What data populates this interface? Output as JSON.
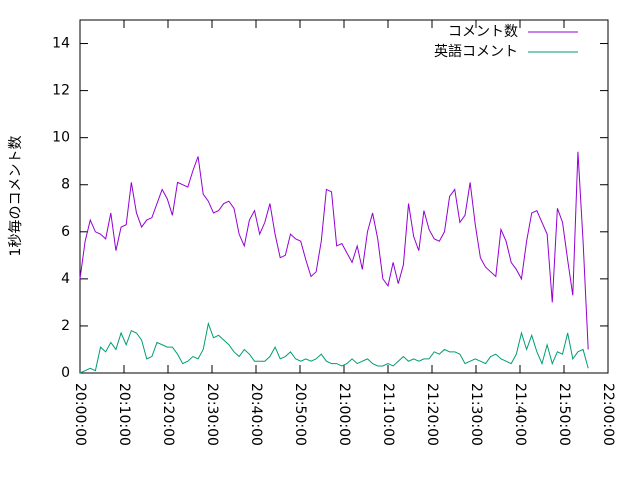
{
  "chart_data": {
    "type": "line",
    "y_label": "1秒毎のコメント数",
    "x": [
      "20:00:00",
      "20:01:10",
      "20:02:20",
      "20:03:30",
      "20:04:40",
      "20:05:50",
      "20:07:00",
      "20:08:10",
      "20:09:20",
      "20:10:30",
      "20:11:40",
      "20:12:50",
      "20:14:00",
      "20:15:10",
      "20:16:20",
      "20:17:30",
      "20:18:40",
      "20:19:50",
      "20:21:00",
      "20:22:10",
      "20:23:20",
      "20:24:30",
      "20:25:40",
      "20:26:50",
      "20:28:00",
      "20:29:10",
      "20:30:20",
      "20:31:30",
      "20:32:40",
      "20:33:50",
      "20:35:00",
      "20:36:10",
      "20:37:20",
      "20:38:30",
      "20:39:40",
      "20:40:50",
      "20:42:00",
      "20:43:10",
      "20:44:20",
      "20:45:30",
      "20:46:40",
      "20:47:50",
      "20:49:00",
      "20:50:10",
      "20:51:20",
      "20:52:30",
      "20:53:40",
      "20:54:50",
      "20:56:00",
      "20:57:10",
      "20:58:20",
      "20:59:30",
      "21:00:40",
      "21:01:50",
      "21:03:00",
      "21:04:10",
      "21:05:20",
      "21:06:30",
      "21:07:40",
      "21:08:50",
      "21:10:00",
      "21:11:10",
      "21:12:20",
      "21:13:30",
      "21:14:40",
      "21:15:50",
      "21:17:00",
      "21:18:10",
      "21:19:20",
      "21:20:30",
      "21:21:40",
      "21:22:50",
      "21:24:00",
      "21:25:10",
      "21:26:20",
      "21:27:30",
      "21:28:40",
      "21:29:50",
      "21:31:00",
      "21:32:10",
      "21:33:20",
      "21:34:30",
      "21:35:40",
      "21:36:50",
      "21:38:00",
      "21:39:10",
      "21:40:20",
      "21:41:30",
      "21:42:40",
      "21:43:50",
      "21:45:00",
      "21:46:10",
      "21:47:20",
      "21:48:30",
      "21:49:40",
      "21:50:50",
      "21:52:00",
      "21:53:10",
      "21:54:20",
      "21:55:30"
    ],
    "series": [
      {
        "name": "コメント数",
        "color": "#9400d3",
        "values": [
          4.0,
          5.6,
          6.5,
          6.0,
          5.9,
          5.7,
          6.8,
          5.2,
          6.2,
          6.3,
          8.1,
          6.8,
          6.2,
          6.5,
          6.6,
          7.2,
          7.8,
          7.4,
          6.7,
          8.1,
          8.0,
          7.9,
          8.6,
          9.2,
          7.6,
          7.3,
          6.8,
          6.9,
          7.2,
          7.3,
          7.0,
          5.9,
          5.4,
          6.5,
          6.9,
          5.9,
          6.4,
          7.2,
          5.9,
          4.9,
          5.0,
          5.9,
          5.7,
          5.6,
          4.8,
          4.1,
          4.3,
          5.6,
          7.8,
          7.7,
          5.4,
          5.5,
          5.1,
          4.7,
          5.4,
          4.4,
          6.0,
          6.8,
          5.7,
          4.0,
          3.7,
          4.7,
          3.8,
          4.6,
          7.2,
          5.8,
          5.2,
          6.9,
          6.1,
          5.7,
          5.6,
          6.0,
          7.5,
          7.8,
          6.4,
          6.7,
          8.1,
          6.3,
          4.9,
          4.5,
          4.3,
          4.1,
          6.1,
          5.6,
          4.7,
          4.4,
          4.0,
          5.6,
          6.8,
          6.9,
          6.4,
          5.9,
          3.0,
          7.0,
          6.4,
          4.8,
          3.3,
          9.4,
          5.6,
          1.0
        ]
      },
      {
        "name": "英語コメント",
        "color": "#009e73",
        "values": [
          0.0,
          0.1,
          0.2,
          0.1,
          1.1,
          0.9,
          1.3,
          1.0,
          1.7,
          1.2,
          1.8,
          1.7,
          1.4,
          0.6,
          0.7,
          1.3,
          1.2,
          1.1,
          1.1,
          0.8,
          0.4,
          0.5,
          0.7,
          0.6,
          1.0,
          2.1,
          1.5,
          1.6,
          1.4,
          1.2,
          0.9,
          0.7,
          1.0,
          0.8,
          0.5,
          0.5,
          0.5,
          0.7,
          1.1,
          0.6,
          0.7,
          0.9,
          0.6,
          0.5,
          0.6,
          0.5,
          0.6,
          0.8,
          0.5,
          0.4,
          0.4,
          0.3,
          0.4,
          0.6,
          0.4,
          0.5,
          0.6,
          0.4,
          0.3,
          0.3,
          0.4,
          0.3,
          0.5,
          0.7,
          0.5,
          0.6,
          0.5,
          0.6,
          0.6,
          0.9,
          0.8,
          1.0,
          0.9,
          0.9,
          0.8,
          0.4,
          0.5,
          0.6,
          0.5,
          0.4,
          0.7,
          0.8,
          0.6,
          0.5,
          0.4,
          0.8,
          1.7,
          1.0,
          1.6,
          0.9,
          0.4,
          1.2,
          0.4,
          0.9,
          0.8,
          1.7,
          0.6,
          0.9,
          1.0,
          0.2
        ]
      }
    ],
    "xlim": [
      "20:00:00",
      "22:00:00"
    ],
    "xticks": [
      "20:00:00",
      "20:10:00",
      "20:20:00",
      "20:30:00",
      "20:40:00",
      "20:50:00",
      "21:00:00",
      "21:10:00",
      "21:20:00",
      "21:30:00",
      "21:40:00",
      "21:50:00",
      "22:00:00"
    ],
    "ylim": [
      0,
      15
    ],
    "yticks": [
      0,
      2,
      4,
      6,
      8,
      10,
      12,
      14
    ],
    "legend": "top right"
  }
}
